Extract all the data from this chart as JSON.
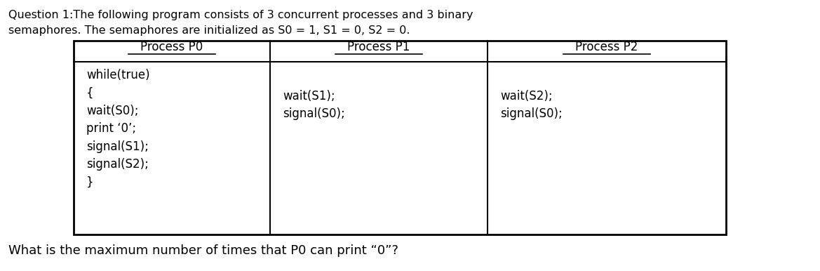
{
  "title_line1": "Question 1:The following program consists of 3 concurrent processes and 3 binary",
  "title_line2": "semaphores. The semaphores are initialized as S0 = 1, S1 = 0, S2 = 0.",
  "col_headers": [
    "Process P0",
    "Process P1",
    "Process P2"
  ],
  "col0_lines": [
    "while(true)",
    "{",
    "wait(S0);",
    "print ‘0’;",
    "signal(S1);",
    "signal(S2);",
    "}"
  ],
  "col1_lines": [
    "wait(S1);",
    "signal(S0);"
  ],
  "col2_lines": [
    "wait(S2);",
    "signal(S0);"
  ],
  "footer": "What is the maximum number of times that P0 can print “0”?",
  "bg_color": "#ffffff",
  "text_color": "#000000",
  "font_size_title": 11.5,
  "font_size_header": 12,
  "font_size_body": 12,
  "font_size_footer": 13
}
